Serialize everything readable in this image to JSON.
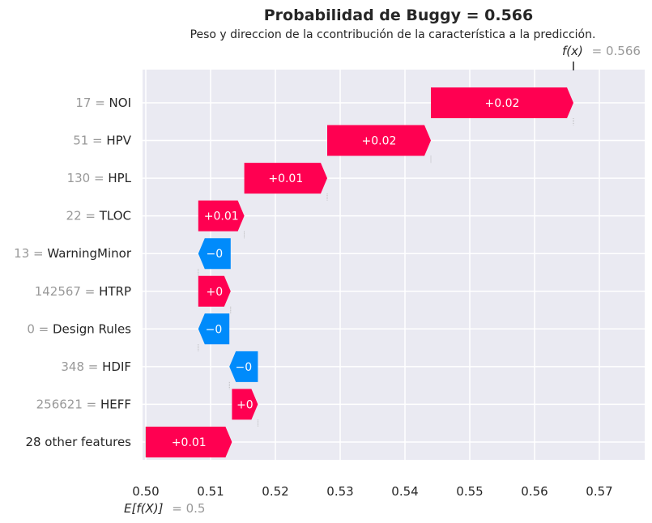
{
  "chart_data": {
    "type": "bar",
    "subtype": "waterfall",
    "title": "Probabilidad de Buggy = 0.566",
    "subtitle": "Peso y direccion de la ccontribución de la característica a la predicción.",
    "fx_label": "f(x)",
    "fx_value": 0.566,
    "fx_value_text": "= 0.566",
    "base_label": "E[f(X)]",
    "base_value": 0.5,
    "base_value_text": "= 0.5",
    "xlim": [
      0.4995,
      0.577
    ],
    "xticks": [
      0.5,
      0.51,
      0.52,
      0.53,
      0.54,
      0.55,
      0.56,
      0.57
    ],
    "xtick_labels": [
      "0.50",
      "0.51",
      "0.52",
      "0.53",
      "0.54",
      "0.55",
      "0.56",
      "0.57"
    ],
    "grid": true,
    "colors": {
      "positive": "#ff0051",
      "negative": "#008bfb",
      "background": "#eaeaf2",
      "grid": "#ffffff"
    },
    "features": [
      {
        "value": "17",
        "name": "NOI",
        "start": 0.544,
        "end": 0.566,
        "label": "+0.02",
        "sign": "positive"
      },
      {
        "value": "51",
        "name": "HPV",
        "start": 0.528,
        "end": 0.544,
        "label": "+0.02",
        "sign": "positive"
      },
      {
        "value": "130",
        "name": "HPL",
        "start": 0.5152,
        "end": 0.528,
        "label": "+0.01",
        "sign": "positive"
      },
      {
        "value": "22",
        "name": "TLOC",
        "start": 0.5081,
        "end": 0.5152,
        "label": "+0.01",
        "sign": "positive"
      },
      {
        "value": "13",
        "name": "WarningMinor",
        "start": 0.5131,
        "end": 0.5081,
        "label": "−0",
        "sign": "negative"
      },
      {
        "value": "142567",
        "name": "HTRP",
        "start": 0.5081,
        "end": 0.5131,
        "label": "+0",
        "sign": "positive"
      },
      {
        "value": "0",
        "name": "Design Rules",
        "start": 0.5129,
        "end": 0.5081,
        "label": "−0",
        "sign": "negative"
      },
      {
        "value": "348",
        "name": "HDIF",
        "start": 0.5173,
        "end": 0.5129,
        "label": "−0",
        "sign": "negative"
      },
      {
        "value": "256621",
        "name": "HEFF",
        "start": 0.5133,
        "end": 0.5173,
        "label": "+0",
        "sign": "positive"
      },
      {
        "value": "",
        "name": "28 other features",
        "start": 0.5,
        "end": 0.5133,
        "label": "+0.01",
        "sign": "positive"
      }
    ]
  }
}
